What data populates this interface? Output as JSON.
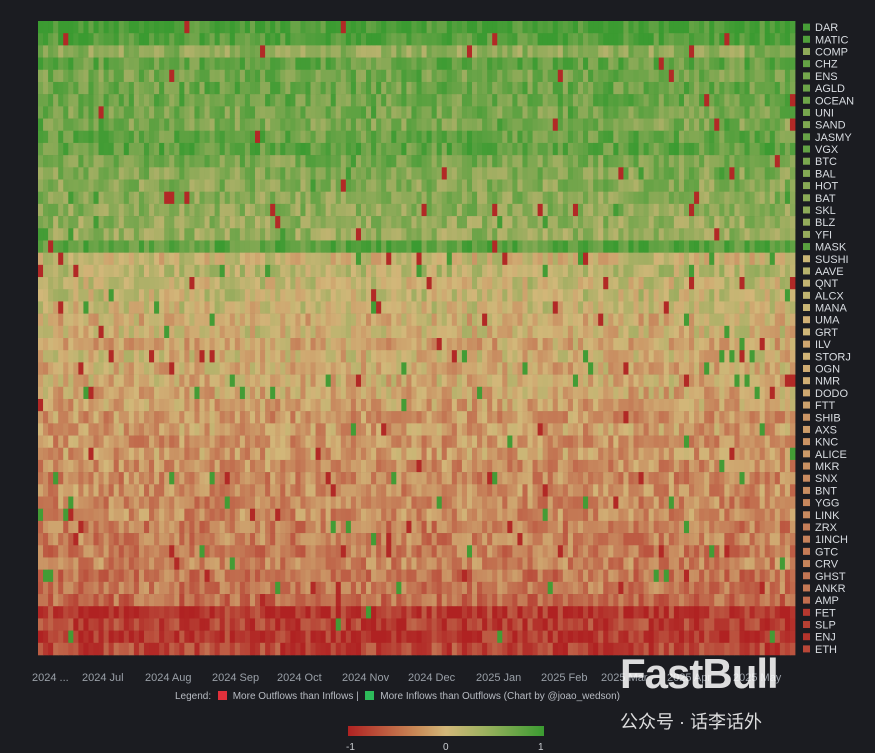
{
  "chart_data": {
    "type": "heatmap",
    "title": "",
    "colorscale": {
      "low_color": "#b02222",
      "mid_color": "#d2b779",
      "high_color": "#3b9b31",
      "range": [
        -1,
        1
      ],
      "ticks": [
        "-1",
        "0",
        "1"
      ]
    },
    "x_ticks": [
      "2024 ...",
      "2024 Jul",
      "2024 Aug",
      "2024 Sep",
      "2024 Oct",
      "2024 Nov",
      "2024 Dec",
      "2025 Jan",
      "2025 Feb",
      "2025 Mar",
      "2025 Apr",
      "2025 May"
    ],
    "rows": [
      {
        "name": "DAR",
        "mean": 0.92
      },
      {
        "name": "MATIC",
        "mean": 0.86
      },
      {
        "name": "COMP",
        "mean": 0.45
      },
      {
        "name": "CHZ",
        "mean": 0.72
      },
      {
        "name": "ENS",
        "mean": 0.62
      },
      {
        "name": "AGLD",
        "mean": 0.68
      },
      {
        "name": "OCEAN",
        "mean": 0.66
      },
      {
        "name": "UNI",
        "mean": 0.6
      },
      {
        "name": "SAND",
        "mean": 0.55
      },
      {
        "name": "JASMY",
        "mean": 0.7
      },
      {
        "name": "VGX",
        "mean": 0.74
      },
      {
        "name": "BTC",
        "mean": 0.58
      },
      {
        "name": "BAL",
        "mean": 0.52
      },
      {
        "name": "HOT",
        "mean": 0.5
      },
      {
        "name": "BAT",
        "mean": 0.48
      },
      {
        "name": "SKL",
        "mean": 0.46
      },
      {
        "name": "BLZ",
        "mean": 0.42
      },
      {
        "name": "YFI",
        "mean": 0.4
      },
      {
        "name": "MASK",
        "mean": 0.8
      },
      {
        "name": "SUSHI",
        "mean": 0.05
      },
      {
        "name": "AAVE",
        "mean": 0.18
      },
      {
        "name": "QNT",
        "mean": 0.1
      },
      {
        "name": "ALCX",
        "mean": 0.12
      },
      {
        "name": "MANA",
        "mean": 0.06
      },
      {
        "name": "UMA",
        "mean": -0.05
      },
      {
        "name": "GRT",
        "mean": 0.02
      },
      {
        "name": "ILV",
        "mean": -0.12
      },
      {
        "name": "STORJ",
        "mean": -0.02
      },
      {
        "name": "OGN",
        "mean": -0.08
      },
      {
        "name": "NMR",
        "mean": -0.06
      },
      {
        "name": "DODO",
        "mean": -0.1
      },
      {
        "name": "FTT",
        "mean": -0.14
      },
      {
        "name": "SHIB",
        "mean": -0.22
      },
      {
        "name": "AXS",
        "mean": -0.18
      },
      {
        "name": "KNC",
        "mean": -0.24
      },
      {
        "name": "ALICE",
        "mean": -0.2
      },
      {
        "name": "MKR",
        "mean": -0.26
      },
      {
        "name": "SNX",
        "mean": -0.3
      },
      {
        "name": "BNT",
        "mean": -0.28
      },
      {
        "name": "YGG",
        "mean": -0.32
      },
      {
        "name": "LINK",
        "mean": -0.3
      },
      {
        "name": "ZRX",
        "mean": -0.38
      },
      {
        "name": "1INCH",
        "mean": -0.36
      },
      {
        "name": "GTC",
        "mean": -0.4
      },
      {
        "name": "CRV",
        "mean": -0.34
      },
      {
        "name": "GHST",
        "mean": -0.44
      },
      {
        "name": "ANKR",
        "mean": -0.42
      },
      {
        "name": "AMP",
        "mean": -0.5
      },
      {
        "name": "FET",
        "mean": -0.85
      },
      {
        "name": "SLP",
        "mean": -0.8
      },
      {
        "name": "ENJ",
        "mean": -0.88
      },
      {
        "name": "ETH",
        "mean": -0.75
      }
    ]
  },
  "legend": {
    "prefix": "Legend:",
    "red_label": "More Outflows than Inflows |",
    "green_label": "More Inflows than Outflows (Chart by @joao_wedson)",
    "red_color": "#e0303b",
    "green_color": "#2dbb5a"
  },
  "watermark": {
    "brand": "FastBull",
    "wechat": "公众号 · 话李话外"
  }
}
